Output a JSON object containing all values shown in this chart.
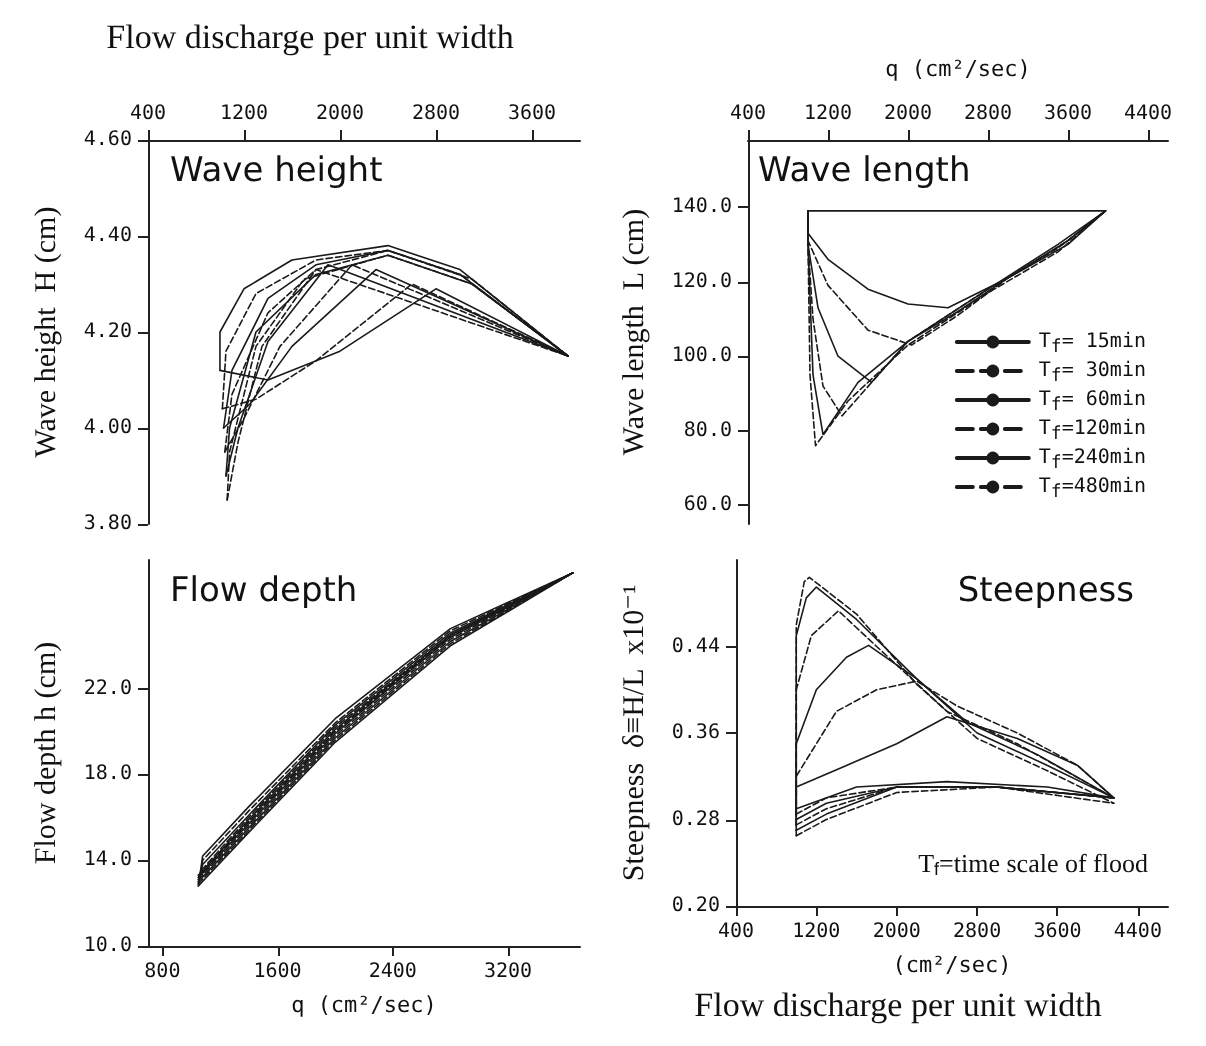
{
  "chart_data": [
    {
      "type": "line",
      "title": "Wave height",
      "ylabel": "Wave height  H (cm)",
      "annotations": [
        "Flow discharge per unit width"
      ],
      "xlim": [
        400,
        4000
      ],
      "xticks": [
        400,
        1200,
        2000,
        2800,
        3600
      ],
      "ylim": [
        3.8,
        4.6
      ],
      "yticks": [
        {
          "value": 3.8,
          "label": "3.80"
        },
        {
          "value": 4.0,
          "label": "4.00"
        },
        {
          "value": 4.2,
          "label": "4.20"
        },
        {
          "value": 4.4,
          "label": "4.40"
        },
        {
          "value": 4.6,
          "label": "4.60"
        }
      ],
      "grid": false,
      "marker": "none",
      "series": [
        {
          "color": "#1a1a1a",
          "line_style": "solid",
          "x": [
            1000,
            1400,
            2000,
            2800,
            3900
          ],
          "values": [
            4.12,
            4.1,
            4.16,
            4.29,
            4.15
          ]
        },
        {
          "color": "#1a1a1a",
          "line_style": "solid",
          "x": [
            1000,
            1000,
            1200,
            1600,
            2400,
            3000,
            3900
          ],
          "values": [
            4.12,
            4.2,
            4.29,
            4.35,
            4.38,
            4.33,
            4.15
          ]
        },
        {
          "color": "#1a1a1a",
          "line_style": "dashed",
          "x": [
            1020,
            1300,
            1800,
            2600,
            3900
          ],
          "values": [
            4.04,
            4.06,
            4.14,
            4.3,
            4.15
          ]
        },
        {
          "color": "#1a1a1a",
          "line_style": "dashed",
          "x": [
            1020,
            1050,
            1300,
            1800,
            2400,
            3000,
            3900
          ],
          "values": [
            4.04,
            4.16,
            4.28,
            4.35,
            4.37,
            4.32,
            4.15
          ]
        },
        {
          "color": "#1a1a1a",
          "line_style": "solid",
          "x": [
            1030,
            1250,
            1600,
            2300,
            3900
          ],
          "values": [
            4.0,
            4.05,
            4.17,
            4.33,
            4.15
          ]
        },
        {
          "color": "#1a1a1a",
          "line_style": "solid",
          "x": [
            1030,
            1100,
            1400,
            1800,
            2400,
            3000,
            3900
          ],
          "values": [
            4.0,
            4.12,
            4.27,
            4.34,
            4.37,
            4.32,
            4.15
          ]
        },
        {
          "color": "#1a1a1a",
          "line_style": "dashed",
          "x": [
            1040,
            1200,
            1500,
            2100,
            3900
          ],
          "values": [
            3.95,
            4.02,
            4.17,
            4.34,
            4.15
          ]
        },
        {
          "color": "#1a1a1a",
          "line_style": "dashed",
          "x": [
            1040,
            1100,
            1400,
            1800,
            2400,
            3100,
            3900
          ],
          "values": [
            3.95,
            4.07,
            4.24,
            4.33,
            4.37,
            4.31,
            4.15
          ]
        },
        {
          "color": "#1a1a1a",
          "line_style": "solid",
          "x": [
            1050,
            1150,
            1400,
            1900,
            3900
          ],
          "values": [
            3.9,
            4.0,
            4.18,
            4.34,
            4.15
          ]
        },
        {
          "color": "#1a1a1a",
          "line_style": "solid",
          "x": [
            1050,
            1080,
            1300,
            1800,
            2400,
            3100,
            3900
          ],
          "values": [
            3.9,
            4.0,
            4.2,
            4.32,
            4.36,
            4.3,
            4.15
          ]
        },
        {
          "color": "#1a1a1a",
          "line_style": "dashed",
          "x": [
            1060,
            1150,
            1350,
            1800,
            3900
          ],
          "values": [
            3.85,
            3.97,
            4.17,
            4.33,
            4.15
          ]
        },
        {
          "color": "#1a1a1a",
          "line_style": "dashed",
          "x": [
            1060,
            1080,
            1300,
            1700,
            2400,
            3100,
            3900
          ],
          "values": [
            3.85,
            3.95,
            4.17,
            4.31,
            4.36,
            4.3,
            4.15
          ]
        }
      ]
    },
    {
      "type": "line",
      "title": "Wave length",
      "ylabel": "Wave length  L (cm)",
      "xlabel": "q (cm²/sec)",
      "xlim": [
        400,
        4600
      ],
      "xticks": [
        400,
        1200,
        2000,
        2800,
        3600,
        4400
      ],
      "ylim": [
        55,
        158
      ],
      "yticks": [
        {
          "value": 60,
          "label": "60.0"
        },
        {
          "value": 80,
          "label": "80.0"
        },
        {
          "value": 100,
          "label": "100.0"
        },
        {
          "value": 120,
          "label": "120.0"
        },
        {
          "value": 140,
          "label": "140.0"
        }
      ],
      "grid": false,
      "marker": "none",
      "legend": "bottom right",
      "series": [
        {
          "color": "#1a1a1a",
          "line_style": "solid",
          "x": [
            1000,
            3975
          ],
          "values": [
            139,
            139
          ]
        },
        {
          "name": "T$_{f}$= 15min",
          "color": "#1a1a1a",
          "line_style": "solid",
          "x": [
            1000,
            1000,
            1200,
            1600,
            2000,
            2400,
            3000,
            3600,
            3975
          ],
          "values": [
            139,
            133,
            126,
            118,
            114,
            113,
            121,
            130,
            139
          ]
        },
        {
          "name": "T$_{f}$= 30min",
          "color": "#1a1a1a",
          "line_style": "dashed",
          "x": [
            1000,
            1000,
            1200,
            1600,
            2036,
            2500,
            3000,
            3600,
            3975
          ],
          "values": [
            139,
            131,
            119,
            107,
            103,
            111,
            121,
            131,
            139
          ]
        },
        {
          "name": "T$_{f}$= 60min",
          "color": "#1a1a1a",
          "line_style": "solid",
          "x": [
            1000,
            1000,
            1100,
            1300,
            1636,
            2000,
            2500,
            3000,
            3600,
            3975
          ],
          "values": [
            139,
            130,
            113,
            100,
            93,
            104,
            112,
            121,
            131,
            139
          ]
        },
        {
          "name": "T$_{f}$=120min",
          "color": "#1a1a1a",
          "line_style": "dashed",
          "x": [
            1000,
            1000,
            1050,
            1150,
            1340,
            2000,
            2800,
            3500,
            3975
          ],
          "values": [
            139,
            130,
            110,
            92,
            84,
            104,
            118,
            129,
            139
          ]
        },
        {
          "name": "T$_{f}$=240min",
          "color": "#1a1a1a",
          "line_style": "solid",
          "x": [
            1000,
            1000,
            1050,
            1150,
            1500,
            2000,
            2800,
            3500,
            3975
          ],
          "values": [
            139,
            130,
            95,
            79,
            93,
            104,
            118,
            130,
            139
          ]
        },
        {
          "name": "T$_{f}$=480min",
          "color": "#1a1a1a",
          "line_style": "dashed",
          "x": [
            1000,
            1000,
            1020,
            1075,
            1400,
            2000,
            2800,
            3500,
            3975
          ],
          "values": [
            139,
            130,
            95,
            76,
            88,
            103,
            117,
            128,
            139
          ]
        }
      ]
    },
    {
      "type": "line",
      "title": "Flow depth",
      "ylabel": "Flow depth h (cm)",
      "xlabel": "q (cm²/sec)",
      "xlim": [
        700,
        3700
      ],
      "xticks": [
        800,
        1600,
        2400,
        3200
      ],
      "ylim": [
        10,
        28
      ],
      "yticks": [
        {
          "value": 10,
          "label": "10.0"
        },
        {
          "value": 14,
          "label": "14.0"
        },
        {
          "value": 18,
          "label": "18.0"
        },
        {
          "value": 22,
          "label": "22.0"
        }
      ],
      "grid": false,
      "marker": "none",
      "series": [
        {
          "color": "#1a1a1a",
          "line_style": "solid",
          "x": [
            1050,
            1400,
            2000,
            2800,
            3650
          ],
          "values": [
            12.8,
            15.3,
            19.5,
            24.0,
            27.4
          ]
        },
        {
          "color": "#1a1a1a",
          "line_style": "solid",
          "x": [
            1050,
            1080,
            1400,
            2000,
            2800,
            3650
          ],
          "values": [
            12.8,
            14.2,
            16.5,
            20.6,
            24.8,
            27.4
          ]
        },
        {
          "color": "#1a1a1a",
          "line_style": "dashed",
          "x": [
            1050,
            1400,
            2000,
            2800,
            3650
          ],
          "values": [
            12.9,
            15.4,
            19.6,
            24.1,
            27.4
          ]
        },
        {
          "color": "#1a1a1a",
          "line_style": "dashed",
          "x": [
            1050,
            1080,
            1400,
            2000,
            2800,
            3650
          ],
          "values": [
            12.9,
            14.0,
            16.3,
            20.4,
            24.7,
            27.4
          ]
        },
        {
          "color": "#1a1a1a",
          "line_style": "solid",
          "x": [
            1050,
            1400,
            2000,
            2800,
            3650
          ],
          "values": [
            13.0,
            15.5,
            19.7,
            24.2,
            27.4
          ]
        },
        {
          "color": "#1a1a1a",
          "line_style": "solid",
          "x": [
            1050,
            1080,
            1400,
            2000,
            2800,
            3650
          ],
          "values": [
            13.0,
            13.8,
            16.1,
            20.3,
            24.6,
            27.4
          ]
        },
        {
          "color": "#1a1a1a",
          "line_style": "dashed",
          "x": [
            1050,
            1400,
            2000,
            2800,
            3650
          ],
          "values": [
            13.1,
            15.6,
            19.8,
            24.3,
            27.4
          ]
        },
        {
          "color": "#1a1a1a",
          "line_style": "dashed",
          "x": [
            1050,
            1080,
            1400,
            2000,
            2800,
            3650
          ],
          "values": [
            13.1,
            13.6,
            16.0,
            20.2,
            24.5,
            27.4
          ]
        },
        {
          "color": "#1a1a1a",
          "line_style": "solid",
          "x": [
            1050,
            1400,
            2000,
            2800,
            3650
          ],
          "values": [
            13.2,
            15.7,
            19.9,
            24.4,
            27.4
          ]
        },
        {
          "color": "#1a1a1a",
          "line_style": "solid",
          "x": [
            1050,
            1080,
            1400,
            2000,
            2800,
            3650
          ],
          "values": [
            13.2,
            13.5,
            15.9,
            20.1,
            24.5,
            27.4
          ]
        },
        {
          "color": "#1a1a1a",
          "line_style": "dashed",
          "x": [
            1050,
            1400,
            2000,
            2800,
            3650
          ],
          "values": [
            13.3,
            15.8,
            20.0,
            24.4,
            27.4
          ]
        },
        {
          "color": "#1a1a1a",
          "line_style": "dashed",
          "x": [
            1050,
            1080,
            1400,
            2000,
            2800,
            3650
          ],
          "values": [
            13.3,
            13.4,
            15.8,
            20.0,
            24.5,
            27.4
          ]
        }
      ]
    },
    {
      "type": "line",
      "title": "Steepness",
      "ylabel": "Steepness  δ≡H/L  x10⁻¹",
      "xlabel": "(cm²/sec)",
      "annotations": [
        "T$_{f}$=time scale of flood",
        "Flow discharge per unit width"
      ],
      "xlim": [
        400,
        4700
      ],
      "xticks": [
        400,
        1200,
        2000,
        2800,
        3600,
        4400
      ],
      "ylim": [
        0.2,
        0.52
      ],
      "yticks": [
        {
          "value": 0.2,
          "label": "0.20"
        },
        {
          "value": 0.28,
          "label": "0.28"
        },
        {
          "value": 0.36,
          "label": "0.36"
        },
        {
          "value": 0.44,
          "label": "0.44"
        }
      ],
      "grid": false,
      "marker": "none",
      "series": [
        {
          "color": "#1a1a1a",
          "line_style": "solid",
          "x": [
            1000,
            1000,
            1500,
            2000,
            2500,
            3200,
            3800,
            4160
          ],
          "values": [
            0.29,
            0.31,
            0.33,
            0.35,
            0.375,
            0.355,
            0.33,
            0.3
          ]
        },
        {
          "color": "#1a1a1a",
          "line_style": "solid",
          "x": [
            1000,
            1600,
            2500,
            3500,
            4160
          ],
          "values": [
            0.29,
            0.31,
            0.315,
            0.31,
            0.3
          ]
        },
        {
          "color": "#1a1a1a",
          "line_style": "dashed",
          "x": [
            1000,
            1000,
            1400,
            1800,
            2200,
            2600,
            3200,
            3800,
            4160
          ],
          "values": [
            0.285,
            0.32,
            0.38,
            0.4,
            0.408,
            0.385,
            0.36,
            0.33,
            0.3
          ]
        },
        {
          "color": "#1a1a1a",
          "line_style": "dashed",
          "x": [
            1000,
            1300,
            2000,
            3000,
            4160
          ],
          "values": [
            0.285,
            0.3,
            0.31,
            0.31,
            0.3
          ]
        },
        {
          "color": "#1a1a1a",
          "line_style": "solid",
          "x": [
            1000,
            1000,
            1200,
            1500,
            1720,
            2200,
            2700,
            3400,
            4160
          ],
          "values": [
            0.28,
            0.35,
            0.4,
            0.43,
            0.441,
            0.41,
            0.37,
            0.34,
            0.3
          ]
        },
        {
          "color": "#1a1a1a",
          "line_style": "solid",
          "x": [
            1000,
            1300,
            2000,
            3000,
            4160
          ],
          "values": [
            0.28,
            0.295,
            0.31,
            0.31,
            0.3
          ]
        },
        {
          "color": "#1a1a1a",
          "line_style": "dashed",
          "x": [
            1000,
            1000,
            1150,
            1420,
            1800,
            2500,
            3200,
            4160
          ],
          "values": [
            0.275,
            0.4,
            0.45,
            0.473,
            0.44,
            0.38,
            0.35,
            0.3
          ]
        },
        {
          "color": "#1a1a1a",
          "line_style": "dashed",
          "x": [
            1000,
            1300,
            2000,
            3000,
            4160
          ],
          "values": [
            0.275,
            0.29,
            0.31,
            0.31,
            0.3
          ]
        },
        {
          "color": "#1a1a1a",
          "line_style": "solid",
          "x": [
            1000,
            1000,
            1100,
            1200,
            1600,
            2200,
            2800,
            3500,
            4160
          ],
          "values": [
            0.27,
            0.45,
            0.485,
            0.495,
            0.465,
            0.41,
            0.36,
            0.33,
            0.3
          ]
        },
        {
          "color": "#1a1a1a",
          "line_style": "solid",
          "x": [
            1000,
            1300,
            2000,
            3000,
            4160
          ],
          "values": [
            0.27,
            0.285,
            0.31,
            0.31,
            0.3
          ]
        },
        {
          "color": "#1a1a1a",
          "line_style": "dashed",
          "x": [
            1000,
            1000,
            1080,
            1130,
            1600,
            2200,
            2800,
            3500,
            4160
          ],
          "values": [
            0.265,
            0.46,
            0.5,
            0.504,
            0.47,
            0.405,
            0.355,
            0.325,
            0.295
          ]
        },
        {
          "color": "#1a1a1a",
          "line_style": "dashed",
          "x": [
            1000,
            1300,
            2000,
            3000,
            4160
          ],
          "values": [
            0.265,
            0.28,
            0.305,
            0.31,
            0.295
          ]
        }
      ]
    }
  ]
}
